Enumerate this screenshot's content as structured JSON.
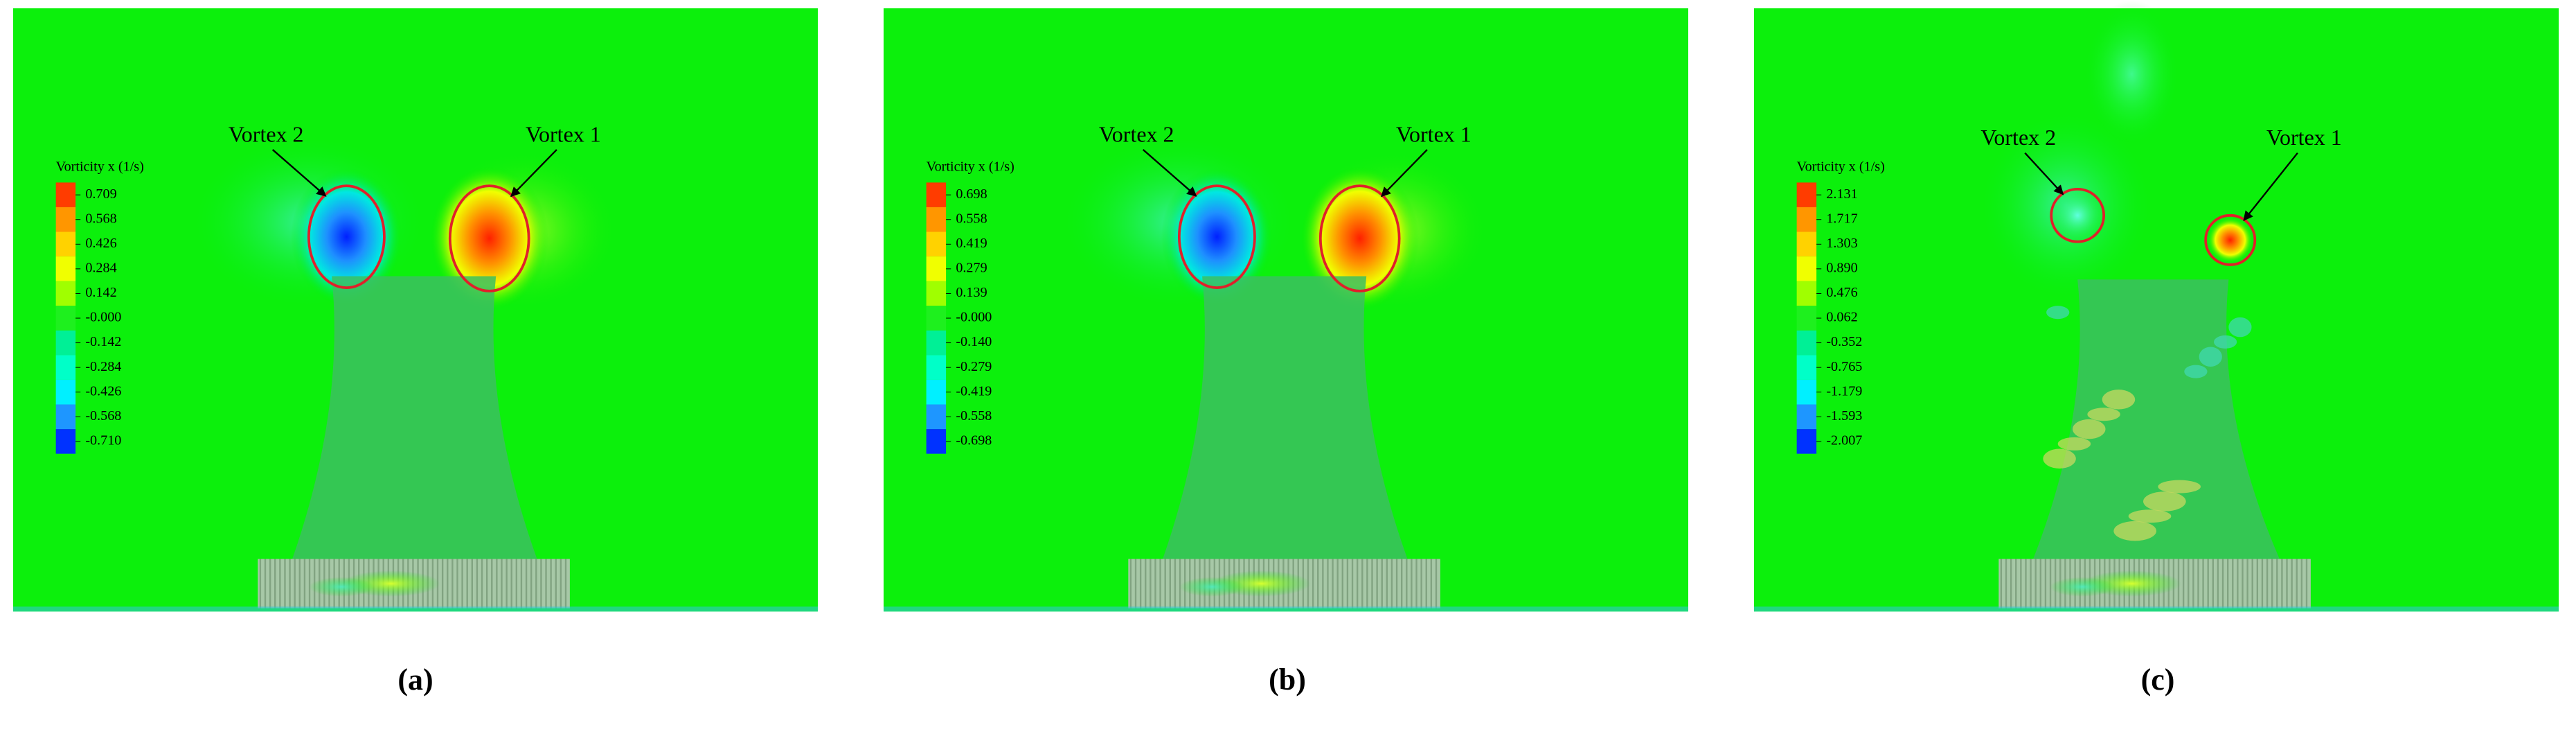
{
  "panels": [
    {
      "label": "(a)",
      "colorbar": {
        "title": "Vorticity x (1/s)",
        "ticks": [
          0.709,
          0.568,
          0.426,
          0.284,
          0.142,
          {
            "value": 0,
            "label": "-0.000"
          },
          -0.142,
          -0.284,
          -0.426,
          -0.568,
          {
            "value": -0.71,
            "label": "-0.710"
          }
        ]
      },
      "annotations": [
        "Vortex 2",
        "Vortex 1"
      ]
    },
    {
      "label": "(b)",
      "colorbar": {
        "title": "Vorticity x (1/s)",
        "ticks": [
          0.698,
          0.558,
          0.419,
          0.279,
          0.139,
          {
            "value": 0,
            "label": "-0.000"
          },
          {
            "value": -0.14,
            "label": "-0.140"
          },
          -0.279,
          -0.419,
          -0.558,
          -0.698
        ]
      },
      "annotations": [
        "Vortex 2",
        "Vortex 1"
      ]
    },
    {
      "label": "(c)",
      "colorbar": {
        "title": "Vorticity x (1/s)",
        "ticks": [
          2.131,
          1.717,
          1.303,
          {
            "value": 0.89,
            "label": "0.890"
          },
          0.476,
          0.062,
          -0.352,
          -0.765,
          -1.179,
          -1.593,
          -2.007
        ]
      },
      "annotations": [
        "Vortex 2",
        "Vortex 1"
      ]
    }
  ]
}
